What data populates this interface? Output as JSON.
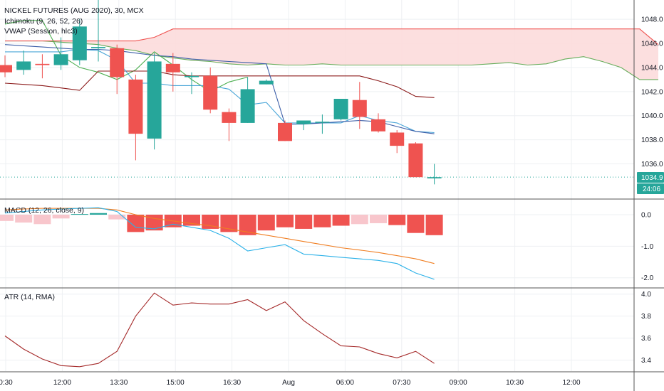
{
  "header": {
    "title": "NICKEL FUTURES (AUG 2020), 30, MCX",
    "ichimoku_label": "Ichimoku (9, 26, 52, 26)",
    "vwap_label": "VWAP (Session, hlc3)",
    "macd_label": "MACD (12, 26, close, 9)",
    "atr_label": "ATR (14, RMA)"
  },
  "price_badge": {
    "price": "1034.9",
    "countdown": "24:06"
  },
  "colors": {
    "up": "#26a69a",
    "down": "#ef5350",
    "cloud": "#fcdcdc",
    "macd_line": "#2bb1e8",
    "signal_line": "#f07e22",
    "hist_neg_strong": "#ef5350",
    "hist_neg_weak": "#f8c6cc",
    "hist_pos": "#26a69a",
    "atr_line": "#a52a2a",
    "conversion": "#4aa6d8",
    "baseline": "#8b1a1a",
    "lagging": "#4caf50",
    "span_a": "#67ad5b",
    "span_b": "#ef5350",
    "vwap": "#3d5fa8"
  },
  "chart_data": [
    {
      "type": "candlestick",
      "name": "price",
      "ylim": [
        1033.2,
        1049.6
      ],
      "y_ticks": [
        "1048.0",
        "1046.0",
        "1044.0",
        "1042.0",
        "1040.0",
        "1038.0",
        "1036.0"
      ],
      "x_ticks": [
        "0:30",
        "12:00",
        "13:30",
        "15:00",
        "16:30",
        "Aug",
        "06:00",
        "07:30",
        "09:00",
        "10:30",
        "12:00"
      ],
      "last_price": 1034.9,
      "ohlc": [
        [
          1044.2,
          1045.0,
          1043.2,
          1043.6
        ],
        [
          1043.8,
          1045.4,
          1043.4,
          1044.5
        ],
        [
          1044.3,
          1045.1,
          1043.1,
          1044.2
        ],
        [
          1044.2,
          1046.5,
          1043.8,
          1045.1
        ],
        [
          1044.6,
          1048.0,
          1044.2,
          1047.4
        ],
        [
          1045.6,
          1049.6,
          1044.5,
          1045.7
        ],
        [
          1045.6,
          1045.9,
          1041.8,
          1043.2
        ],
        [
          1043.0,
          1043.4,
          1036.3,
          1038.5
        ],
        [
          1038.1,
          1045.2,
          1037.2,
          1044.5
        ],
        [
          1044.3,
          1045.2,
          1042.0,
          1043.6
        ],
        [
          1043.2,
          1043.6,
          1041.8,
          1043.3
        ],
        [
          1043.3,
          1044.0,
          1040.2,
          1040.5
        ],
        [
          1040.3,
          1040.6,
          1037.9,
          1039.4
        ],
        [
          1039.4,
          1043.2,
          1039.4,
          1042.2
        ],
        [
          1042.6,
          1043.0,
          1042.6,
          1042.9
        ],
        [
          1039.4,
          1039.6,
          1037.9,
          1037.9
        ],
        [
          1039.3,
          1039.6,
          1038.8,
          1039.6
        ],
        [
          1039.5,
          1040.1,
          1038.5,
          1039.5
        ],
        [
          1039.7,
          1041.4,
          1039.6,
          1041.4
        ],
        [
          1041.3,
          1042.8,
          1038.9,
          1039.9
        ],
        [
          1039.7,
          1040.2,
          1038.6,
          1038.7
        ],
        [
          1038.6,
          1038.8,
          1036.9,
          1037.5
        ],
        [
          1037.7,
          1037.8,
          1034.9,
          1034.9
        ],
        [
          1034.8,
          1036.0,
          1034.3,
          1034.9
        ]
      ],
      "vwap": [
        1045.9,
        1045.8,
        1045.7,
        1045.6,
        1045.5,
        1045.5,
        1045.4,
        1045.2,
        1045.0,
        1044.9,
        1044.7,
        1044.6,
        1044.5,
        1044.4,
        1044.3,
        1039.3,
        1039.3,
        1039.4,
        1039.5,
        1039.6,
        1039.5,
        1039.1,
        1038.7,
        1038.5
      ],
      "conversion_line": [
        1045.3,
        1045.3,
        1045.3,
        1045.3,
        1045.5,
        1045.4,
        1044.6,
        1042.7,
        1042.7,
        1042.5,
        1042.5,
        1042.5,
        1042.2,
        1040.9,
        1041.1,
        1039.4,
        1039.4,
        1039.4,
        1039.4,
        1040.0,
        1039.6,
        1039.4,
        1038.7,
        1038.6
      ],
      "base_line": [
        1042.7,
        1042.6,
        1042.5,
        1042.3,
        1042.1,
        1043.7,
        1043.7,
        1043.7,
        1043.7,
        1043.4,
        1043.3,
        1043.3,
        1043.3,
        1043.3,
        1043.3,
        1043.3,
        1043.3,
        1043.3,
        1043.3,
        1043.3,
        1042.9,
        1042.4,
        1041.6,
        1041.5
      ],
      "lagging_span": [
        1047.6,
        1047.9,
        1047.9,
        1045.0,
        1044.0,
        1043.6,
        1043.0,
        1043.8,
        1045.3,
        1044.2,
        1043.0,
        1042.0,
        1042.8,
        1043.2
      ],
      "leading_span_a": [
        1046.2,
        1046.2,
        1046.2,
        1046.1,
        1046.0,
        1045.9,
        1045.6,
        1045.4,
        1045.0,
        1044.8,
        1044.6,
        1044.5,
        1044.3,
        1044.2,
        1044.3,
        1044.2,
        1044.2,
        1044.3,
        1044.2,
        1044.2,
        1044.2,
        1044.2,
        1044.2,
        1044.2,
        1044.2,
        1044.2,
        1044.3,
        1044.4,
        1044.2,
        1044.3,
        1044.7,
        1044.9,
        1044.5,
        1044.0,
        1043.0,
        1043.0
      ],
      "leading_span_b": [
        1046.2,
        1046.2,
        1046.2,
        1046.2,
        1046.2,
        1046.2,
        1046.2,
        1046.2,
        1046.5,
        1047.2,
        1047.2,
        1047.2,
        1047.2,
        1047.2,
        1047.2,
        1047.2,
        1047.2,
        1047.2,
        1047.2,
        1047.2,
        1047.2,
        1047.2,
        1047.2,
        1047.2,
        1047.2,
        1047.2,
        1047.2,
        1047.2,
        1047.2,
        1047.2,
        1047.2,
        1047.2,
        1047.2,
        1047.2,
        1047.2,
        1045.9
      ]
    },
    {
      "type": "bar",
      "name": "MACD (12, 26, close, 9)",
      "ylim": [
        -2.3,
        0.45
      ],
      "y_ticks": [
        "0.0",
        "-1.0",
        "-2.0"
      ],
      "histogram": [
        -0.2,
        -0.25,
        -0.3,
        -0.12,
        0.02,
        0.05,
        -0.15,
        -0.55,
        -0.5,
        -0.4,
        -0.35,
        -0.45,
        -0.55,
        -0.65,
        -0.5,
        -0.4,
        -0.45,
        -0.4,
        -0.35,
        -0.3,
        -0.27,
        -0.33,
        -0.58,
        -0.65
      ],
      "macd_line": [
        0.05,
        0.1,
        0.15,
        0.18,
        0.2,
        0.22,
        0.1,
        -0.4,
        -0.45,
        -0.3,
        -0.4,
        -0.5,
        -0.75,
        -1.15,
        -1.05,
        -0.95,
        -1.25,
        -1.3,
        -1.35,
        -1.4,
        -1.45,
        -1.55,
        -1.85,
        -2.05
      ],
      "signal_line": [
        0.15,
        0.18,
        0.2,
        0.2,
        0.2,
        0.2,
        0.15,
        0.0,
        -0.12,
        -0.2,
        -0.28,
        -0.35,
        -0.45,
        -0.55,
        -0.65,
        -0.75,
        -0.85,
        -0.95,
        -1.05,
        -1.12,
        -1.2,
        -1.3,
        -1.4,
        -1.55
      ]
    },
    {
      "type": "line",
      "name": "ATR (14, RMA)",
      "ylim": [
        3.3,
        4.05
      ],
      "y_ticks": [
        "4.0",
        "3.8",
        "3.6",
        "3.4"
      ],
      "values": [
        3.62,
        3.5,
        3.41,
        3.35,
        3.34,
        3.37,
        3.48,
        3.8,
        4.01,
        3.9,
        3.92,
        3.91,
        3.91,
        3.95,
        3.85,
        3.93,
        3.76,
        3.64,
        3.53,
        3.52,
        3.46,
        3.42,
        3.48,
        3.37
      ]
    }
  ]
}
